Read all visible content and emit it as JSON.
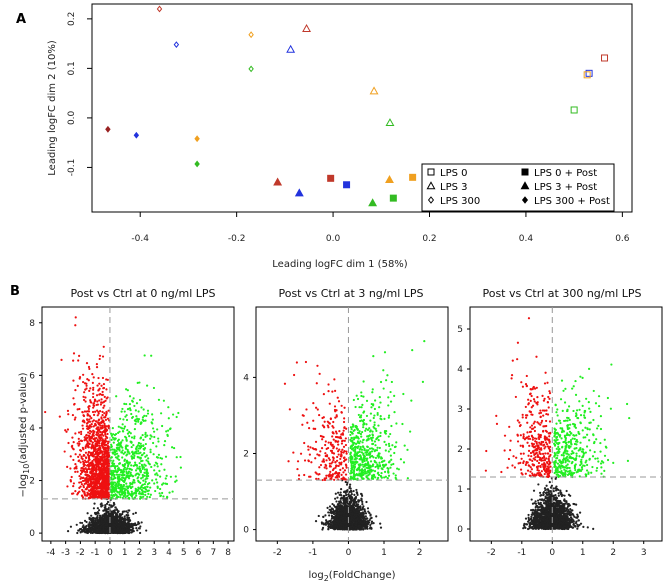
{
  "panels": {
    "a": "A",
    "b": "B"
  },
  "chart_data": [
    {
      "type": "scatter",
      "id": "mds",
      "xlabel": "Leading logFC dim 1 (58%)",
      "ylabel": "Leading logFC dim 2 (10%)",
      "xlim": [
        -0.5,
        0.62
      ],
      "ylim": [
        -0.19,
        0.23
      ],
      "xticks": [
        -0.4,
        -0.2,
        0.0,
        0.2,
        0.4,
        0.6
      ],
      "xtick_labels": [
        "-0.4",
        "-0.2",
        "0.0",
        "0.2",
        "0.4",
        "0.6"
      ],
      "yticks": [
        -0.1,
        0.0,
        0.1,
        0.2
      ],
      "ytick_labels": [
        "-0.1",
        "0.0",
        "0.1",
        "0.2"
      ],
      "colors": {
        "red": "#c0392b",
        "blue": "#2233dd",
        "orange": "#f0a020",
        "green": "#33bb22",
        "darkred": "#992222"
      },
      "legend": [
        {
          "label": "LPS 0",
          "shape": "square",
          "filled": false
        },
        {
          "label": "LPS 3",
          "shape": "triangle",
          "filled": false
        },
        {
          "label": "LPS 300",
          "shape": "diamond",
          "filled": false
        },
        {
          "label": "LPS 0 + Post",
          "shape": "square",
          "filled": true
        },
        {
          "label": "LPS 3 + Post",
          "shape": "triangle",
          "filled": true
        },
        {
          "label": "LPS 300 + Post",
          "shape": "diamond",
          "filled": true
        }
      ],
      "points": [
        {
          "x": 0.563,
          "y": 0.121,
          "shape": "square",
          "filled": false,
          "color": "red"
        },
        {
          "x": 0.531,
          "y": 0.09,
          "shape": "square",
          "filled": false,
          "color": "blue"
        },
        {
          "x": 0.527,
          "y": 0.087,
          "shape": "square",
          "filled": false,
          "color": "orange"
        },
        {
          "x": 0.5,
          "y": 0.016,
          "shape": "square",
          "filled": false,
          "color": "green"
        },
        {
          "x": -0.055,
          "y": 0.18,
          "shape": "triangle",
          "filled": false,
          "color": "red"
        },
        {
          "x": -0.088,
          "y": 0.138,
          "shape": "triangle",
          "filled": false,
          "color": "blue"
        },
        {
          "x": 0.085,
          "y": 0.054,
          "shape": "triangle",
          "filled": false,
          "color": "orange"
        },
        {
          "x": 0.118,
          "y": -0.01,
          "shape": "triangle",
          "filled": false,
          "color": "green"
        },
        {
          "x": -0.36,
          "y": 0.22,
          "shape": "diamond",
          "filled": false,
          "color": "red"
        },
        {
          "x": -0.325,
          "y": 0.148,
          "shape": "diamond",
          "filled": false,
          "color": "blue"
        },
        {
          "x": -0.17,
          "y": 0.168,
          "shape": "diamond",
          "filled": false,
          "color": "orange"
        },
        {
          "x": -0.17,
          "y": 0.099,
          "shape": "diamond",
          "filled": false,
          "color": "green"
        },
        {
          "x": -0.005,
          "y": -0.122,
          "shape": "square",
          "filled": true,
          "color": "red"
        },
        {
          "x": 0.028,
          "y": -0.135,
          "shape": "square",
          "filled": true,
          "color": "blue"
        },
        {
          "x": 0.165,
          "y": -0.12,
          "shape": "square",
          "filled": true,
          "color": "orange"
        },
        {
          "x": 0.125,
          "y": -0.162,
          "shape": "square",
          "filled": true,
          "color": "green"
        },
        {
          "x": -0.115,
          "y": -0.13,
          "shape": "triangle",
          "filled": true,
          "color": "red"
        },
        {
          "x": -0.07,
          "y": -0.152,
          "shape": "triangle",
          "filled": true,
          "color": "blue"
        },
        {
          "x": 0.117,
          "y": -0.125,
          "shape": "triangle",
          "filled": true,
          "color": "orange"
        },
        {
          "x": 0.082,
          "y": -0.172,
          "shape": "triangle",
          "filled": true,
          "color": "green"
        },
        {
          "x": -0.467,
          "y": -0.023,
          "shape": "diamond",
          "filled": true,
          "color": "darkred"
        },
        {
          "x": -0.408,
          "y": -0.035,
          "shape": "diamond",
          "filled": true,
          "color": "blue"
        },
        {
          "x": -0.282,
          "y": -0.042,
          "shape": "diamond",
          "filled": true,
          "color": "orange"
        },
        {
          "x": -0.282,
          "y": -0.093,
          "shape": "diamond",
          "filled": true,
          "color": "green"
        }
      ]
    },
    {
      "type": "scatter",
      "id": "volcano-0",
      "title": "Post vs Ctrl at 0 ng/ml LPS",
      "xlim": [
        -4.6,
        8.4
      ],
      "ylim": [
        -0.3,
        8.6
      ],
      "xticks": [
        -4,
        -3,
        -2,
        -1,
        0,
        1,
        2,
        3,
        4,
        5,
        6,
        7,
        8
      ],
      "xtick_labels": [
        "-4",
        "-3",
        "-2",
        "-1",
        "0",
        "1",
        "2",
        "3",
        "4",
        "5",
        "6",
        "7",
        "8"
      ],
      "yticks": [
        0,
        2,
        4,
        6,
        8
      ],
      "ytick_labels": [
        "0",
        "2",
        "4",
        "6",
        "8"
      ],
      "threshold_y": 1.3,
      "vline_x": 0,
      "colors": {
        "down": "#ee1111",
        "up": "#22ee22",
        "ns": "#222222"
      },
      "point_counts": {
        "ns": 1400,
        "down": 1400,
        "up": 700
      }
    },
    {
      "type": "scatter",
      "id": "volcano-3",
      "title": "Post vs Ctrl at 3 ng/ml LPS",
      "xlim": [
        -2.6,
        2.8
      ],
      "ylim": [
        -0.3,
        5.85
      ],
      "xticks": [
        -2,
        -1,
        0,
        1,
        2
      ],
      "xtick_labels": [
        "-2",
        "-1",
        "0",
        "1",
        "2"
      ],
      "yticks": [
        0,
        2,
        4
      ],
      "ytick_labels": [
        "0",
        "2",
        "4"
      ],
      "threshold_y": 1.3,
      "vline_x": 0,
      "colors": {
        "down": "#ee1111",
        "up": "#22ee22",
        "ns": "#222222"
      },
      "point_counts": {
        "ns": 1600,
        "down": 260,
        "up": 520
      }
    },
    {
      "type": "scatter",
      "id": "volcano-300",
      "title": "Post vs Ctrl at 300 ng/ml LPS",
      "xlim": [
        -2.7,
        3.6
      ],
      "ylim": [
        -0.3,
        5.55
      ],
      "xticks": [
        -2,
        -1,
        0,
        1,
        2,
        3
      ],
      "xtick_labels": [
        "-2",
        "-1",
        "0",
        "1",
        "2",
        "3"
      ],
      "yticks": [
        0,
        1,
        2,
        3,
        4,
        5
      ],
      "ytick_labels": [
        "0",
        "1",
        "2",
        "3",
        "4",
        "5"
      ],
      "threshold_y": 1.3,
      "vline_x": 0,
      "colors": {
        "down": "#ee1111",
        "up": "#22ee22",
        "ns": "#222222"
      },
      "point_counts": {
        "ns": 1600,
        "down": 360,
        "up": 400
      }
    }
  ],
  "volcano_axis": {
    "ylabel": "−log10(adjusted p-value)",
    "xlabel": "log2(FoldChange)"
  }
}
